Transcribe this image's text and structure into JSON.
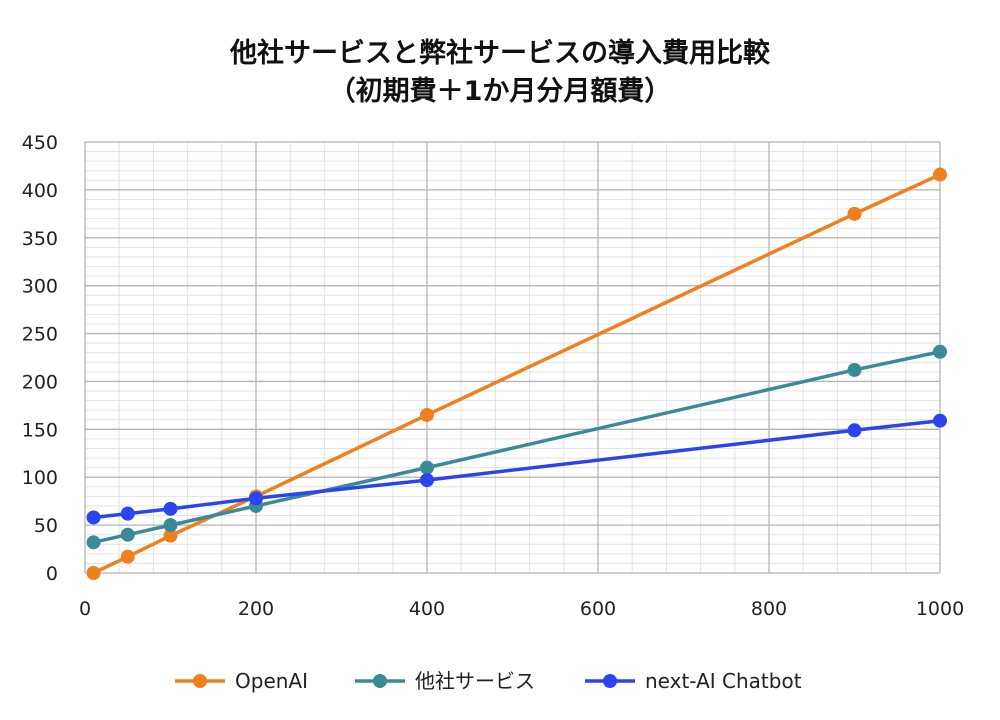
{
  "chart_data": {
    "type": "line",
    "title_lines": [
      "他社サービスと弊社サービスの導入費用比較",
      "（初期費＋1か月分月額費）"
    ],
    "xlabel": "",
    "ylabel": "",
    "xlim": [
      0,
      1000
    ],
    "ylim": [
      0,
      450
    ],
    "x_ticks": [
      0,
      200,
      400,
      600,
      800,
      1000
    ],
    "y_ticks": [
      0,
      50,
      100,
      150,
      200,
      250,
      300,
      350,
      400,
      450
    ],
    "grid": true,
    "legend_position": "bottom",
    "series": [
      {
        "name": "OpenAI",
        "color": "#F07F1E",
        "x": [
          10,
          50,
          100,
          200,
          400,
          900,
          1000
        ],
        "y": [
          0,
          17,
          39,
          80,
          165,
          375,
          416
        ]
      },
      {
        "name": "他社サービス",
        "color": "#3A8A98",
        "x": [
          10,
          50,
          100,
          200,
          400,
          900,
          1000
        ],
        "y": [
          32,
          40,
          50,
          70,
          110,
          212,
          231
        ]
      },
      {
        "name": "next-AI Chatbot",
        "color": "#2B44F0",
        "x": [
          10,
          50,
          100,
          200,
          400,
          900,
          1000
        ],
        "y": [
          58,
          62,
          67,
          78,
          97,
          149,
          159
        ]
      }
    ]
  }
}
